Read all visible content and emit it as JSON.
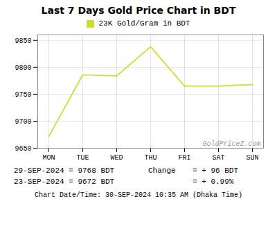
{
  "chart_data": {
    "type": "line",
    "title": "Last 7 Days Gold Price Chart in BDT",
    "categories": [
      "MON",
      "TUE",
      "WED",
      "THU",
      "FRI",
      "SAT",
      "SUN"
    ],
    "series": [
      {
        "name": "23K Gold/Gram in BDT",
        "color": "#ccdd33",
        "values": [
          9672,
          9786,
          9784,
          9838,
          9765,
          9765,
          9768
        ]
      }
    ],
    "ylim": [
      9650,
      9860
    ],
    "yticks": [
      9650,
      9700,
      9750,
      9800,
      9850
    ],
    "grid": true,
    "legend": "top",
    "annotations": [
      "GoldPriceZ.com",
      "29-SEP-2024 = 9768 BDT",
      "23-SEP-2024 = 9672 BDT",
      "Change",
      "= + 96 BDT",
      "= + 0.99%",
      "Chart Date/Time: 30-SEP-2024 10:35 AM (Dhaka Time)"
    ]
  }
}
